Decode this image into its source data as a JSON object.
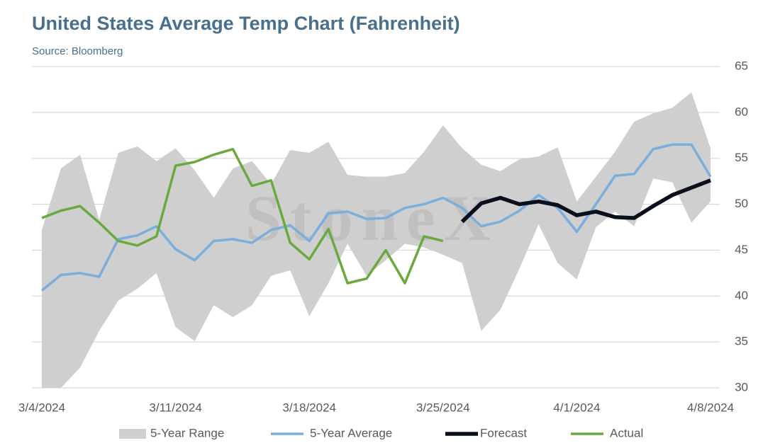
{
  "chart_data": {
    "type": "line",
    "title": "United States Average Temp Chart (Fahrenheit)",
    "subtitle": "Source: Bloomberg",
    "watermark": "StoneX",
    "categories": [
      "3/4/2024",
      null,
      null,
      null,
      null,
      null,
      null,
      "3/11/2024",
      null,
      null,
      null,
      null,
      null,
      null,
      "3/18/2024",
      null,
      null,
      null,
      null,
      null,
      null,
      "3/25/2024",
      null,
      null,
      null,
      null,
      null,
      null,
      "4/1/2024",
      null,
      null,
      null,
      null,
      null,
      null,
      "4/8/2024"
    ],
    "ylim": [
      30,
      65
    ],
    "yticks": [
      30,
      35,
      40,
      45,
      50,
      55,
      60,
      65
    ],
    "grid": true,
    "legend": "bottom",
    "range": {
      "name": "5-Year Range",
      "color": "#cfcfcf",
      "high": [
        47.2,
        53.9,
        55.4,
        48.3,
        55.6,
        56.3,
        54.7,
        56.1,
        53.7,
        50.7,
        53.9,
        54.7,
        52.2,
        55.9,
        55.6,
        56.8,
        53.2,
        53.0,
        53.0,
        53.4,
        55.7,
        58.6,
        56.1,
        54.3,
        53.6,
        54.9,
        55.2,
        56.2,
        50.3,
        53.0,
        55.7,
        59.0,
        59.9,
        60.5,
        62.2,
        56.1
      ],
      "low": [
        30.0,
        30.0,
        32.2,
        36.2,
        39.5,
        40.8,
        42.5,
        36.6,
        35.1,
        39.0,
        37.7,
        39.0,
        42.2,
        42.8,
        37.8,
        41.4,
        45.7,
        42.2,
        43.9,
        45.7,
        45.3,
        44.5,
        43.6,
        36.2,
        38.5,
        43.0,
        47.8,
        43.6,
        41.8,
        47.5,
        49.2,
        47.6,
        52.8,
        52.4,
        48.0,
        50.3
      ]
    },
    "series": [
      {
        "name": "5-Year Average",
        "color": "#7aaedc",
        "width": 3.5,
        "values": [
          40.6,
          42.3,
          42.5,
          42.1,
          46.2,
          46.6,
          47.6,
          45.1,
          43.9,
          46.0,
          46.2,
          45.8,
          47.2,
          47.7,
          46.0,
          49.0,
          49.2,
          48.4,
          48.5,
          49.6,
          50.0,
          50.7,
          49.6,
          47.6,
          48.1,
          49.3,
          51.0,
          49.6,
          47.0,
          50.0,
          53.1,
          53.3,
          56.0,
          56.5,
          56.5,
          53.0
        ]
      },
      {
        "name": "Forecast",
        "color": "#0a0f1e",
        "width": 5.5,
        "values": [
          null,
          null,
          null,
          null,
          null,
          null,
          null,
          null,
          null,
          null,
          null,
          null,
          null,
          null,
          null,
          null,
          null,
          null,
          null,
          null,
          null,
          null,
          48.1,
          50.1,
          50.7,
          50.0,
          50.3,
          49.9,
          48.8,
          49.2,
          48.6,
          48.5,
          49.8,
          51.0,
          51.8,
          52.6
        ]
      },
      {
        "name": "Actual",
        "color": "#6aaa3c",
        "width": 3.5,
        "values": [
          48.5,
          49.3,
          49.8,
          48.0,
          46.0,
          45.5,
          46.5,
          54.2,
          54.6,
          55.4,
          56.0,
          52.0,
          52.6,
          45.8,
          44.0,
          47.3,
          41.4,
          41.9,
          45.0,
          41.4,
          46.5,
          46.0,
          null,
          null,
          null,
          null,
          null,
          null,
          null,
          null,
          null,
          null,
          null,
          null,
          null,
          null
        ]
      }
    ]
  }
}
